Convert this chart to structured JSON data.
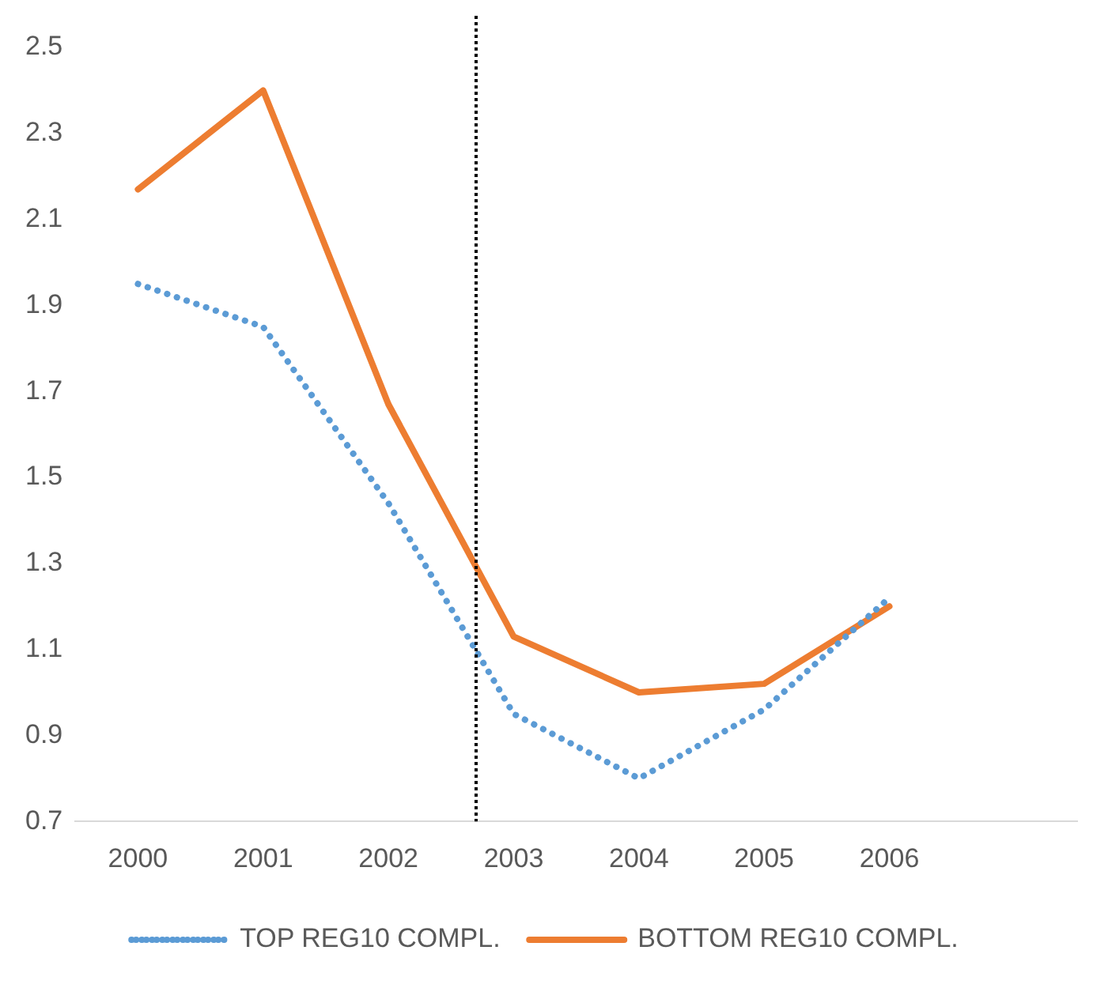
{
  "chart_data": {
    "type": "line",
    "x": [
      2000,
      2001,
      2002,
      2003,
      2004,
      2005,
      2006
    ],
    "xlim": [
      1999.5,
      2007.5
    ],
    "xticks": [
      2000,
      2001,
      2002,
      2003,
      2004,
      2005,
      2006
    ],
    "ylim": [
      0.7,
      2.5
    ],
    "yticks": [
      0.7,
      0.9,
      1.1,
      1.3,
      1.5,
      1.7,
      1.9,
      2.1,
      2.3,
      2.5
    ],
    "grid": false,
    "legend": "bottom",
    "marker": "none",
    "series": [
      {
        "name": "TOP REG10 COMPL.",
        "color": "#5b9bd5",
        "line_style": "dotted",
        "values": [
          1.95,
          1.85,
          1.44,
          0.95,
          0.8,
          0.96,
          1.22
        ]
      },
      {
        "name": "BOTTOM REG10 COMPL.",
        "color": "#ed7d31",
        "line_style": "solid",
        "values": [
          2.17,
          2.4,
          1.67,
          1.13,
          1.0,
          1.02,
          1.2
        ]
      }
    ],
    "ref_lines": [
      {
        "axis": "x",
        "value": 2002.7,
        "color": "#000000",
        "line_style": "dotted"
      }
    ]
  }
}
